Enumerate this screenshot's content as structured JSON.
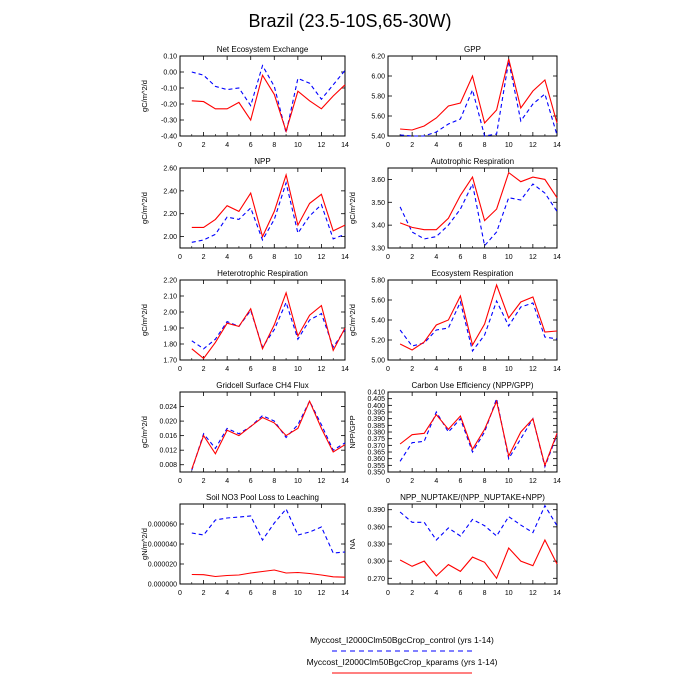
{
  "title": "Brazil (23.5-10S,65-30W)",
  "legend": [
    {
      "label": "Myccost_I2000Clm50BgcCrop_control (yrs 1-14)",
      "color": "#0000ff",
      "dash": true
    },
    {
      "label": "Myccost_I2000Clm50BgcCrop_kparams (yrs 1-14)",
      "color": "#ff0000",
      "dash": false
    }
  ],
  "chart_data": [
    {
      "type": "line",
      "title": "Net Ecosystem Exchange",
      "ylabel": "gC/m^2/d",
      "xlim": [
        0,
        14
      ],
      "xticks": [
        0,
        2,
        4,
        6,
        8,
        10,
        12,
        14
      ],
      "ylim": [
        -0.4,
        0.1
      ],
      "yticks": [
        -0.4,
        -0.3,
        -0.2,
        -0.1,
        0.0,
        0.1
      ],
      "ytick_labels": [
        "-0.40",
        "-0.30",
        "-0.20",
        "-0.10",
        "0.00",
        "0.10"
      ],
      "x": [
        1,
        2,
        3,
        4,
        5,
        6,
        7,
        8,
        9,
        10,
        11,
        12,
        13,
        14
      ],
      "series": [
        {
          "color": "#0000ff",
          "dash": true,
          "values": [
            0.0,
            -0.02,
            -0.09,
            -0.11,
            -0.1,
            -0.21,
            0.04,
            -0.09,
            -0.38,
            -0.04,
            -0.07,
            -0.17,
            -0.08,
            0.01
          ]
        },
        {
          "color": "#ff0000",
          "dash": false,
          "values": [
            -0.18,
            -0.185,
            -0.23,
            -0.23,
            -0.19,
            -0.3,
            -0.02,
            -0.14,
            -0.37,
            -0.12,
            -0.18,
            -0.23,
            -0.15,
            -0.08
          ]
        }
      ]
    },
    {
      "type": "line",
      "title": "GPP",
      "ylabel": "",
      "xlim": [
        0,
        14
      ],
      "xticks": [
        0,
        2,
        4,
        6,
        8,
        10,
        12,
        14
      ],
      "ylim": [
        5.4,
        6.2
      ],
      "yticks": [
        5.4,
        5.6,
        5.8,
        6.0,
        6.2
      ],
      "ytick_labels": [
        "5.40",
        "5.60",
        "5.80",
        "6.00",
        "6.20"
      ],
      "x": [
        1,
        2,
        3,
        4,
        5,
        6,
        7,
        8,
        9,
        10,
        11,
        12,
        13,
        14
      ],
      "series": [
        {
          "color": "#0000ff",
          "dash": true,
          "values": [
            5.41,
            5.35,
            5.37,
            5.44,
            5.52,
            5.57,
            5.86,
            5.28,
            5.42,
            6.15,
            5.55,
            5.72,
            5.82,
            5.41
          ]
        },
        {
          "color": "#ff0000",
          "dash": false,
          "values": [
            5.47,
            5.46,
            5.5,
            5.58,
            5.7,
            5.73,
            6.0,
            5.53,
            5.66,
            6.17,
            5.68,
            5.85,
            5.96,
            5.53
          ]
        }
      ]
    },
    {
      "type": "line",
      "title": "NPP",
      "ylabel": "gC/m^2/d",
      "xlim": [
        0,
        14
      ],
      "xticks": [
        0,
        2,
        4,
        6,
        8,
        10,
        12,
        14
      ],
      "ylim": [
        1.9,
        2.6
      ],
      "yticks": [
        2.0,
        2.2,
        2.4,
        2.6
      ],
      "ytick_labels": [
        "2.00",
        "2.20",
        "2.40",
        "2.60"
      ],
      "x": [
        1,
        2,
        3,
        4,
        5,
        6,
        7,
        8,
        9,
        10,
        11,
        12,
        13,
        14
      ],
      "series": [
        {
          "color": "#0000ff",
          "dash": true,
          "values": [
            1.95,
            1.97,
            2.02,
            2.17,
            2.15,
            2.25,
            1.97,
            2.15,
            2.47,
            2.03,
            2.18,
            2.28,
            1.98,
            2.02
          ]
        },
        {
          "color": "#ff0000",
          "dash": false,
          "values": [
            2.08,
            2.08,
            2.15,
            2.27,
            2.22,
            2.38,
            2.0,
            2.22,
            2.54,
            2.1,
            2.29,
            2.37,
            2.05,
            2.1
          ]
        }
      ]
    },
    {
      "type": "line",
      "title": "Autotrophic Respiration",
      "ylabel": "gC/m^2/d",
      "xlim": [
        0,
        14
      ],
      "xticks": [
        0,
        2,
        4,
        6,
        8,
        10,
        12,
        14
      ],
      "ylim": [
        3.3,
        3.65
      ],
      "yticks": [
        3.3,
        3.4,
        3.5,
        3.6
      ],
      "ytick_labels": [
        "3.30",
        "3.40",
        "3.50",
        "3.60"
      ],
      "x": [
        1,
        2,
        3,
        4,
        5,
        6,
        7,
        8,
        9,
        10,
        11,
        12,
        13,
        14
      ],
      "series": [
        {
          "color": "#0000ff",
          "dash": true,
          "values": [
            3.48,
            3.37,
            3.34,
            3.35,
            3.4,
            3.47,
            3.58,
            3.31,
            3.37,
            3.52,
            3.51,
            3.58,
            3.54,
            3.46
          ]
        },
        {
          "color": "#ff0000",
          "dash": false,
          "values": [
            3.41,
            3.39,
            3.38,
            3.38,
            3.43,
            3.53,
            3.61,
            3.42,
            3.47,
            3.63,
            3.59,
            3.61,
            3.6,
            3.52
          ]
        }
      ]
    },
    {
      "type": "line",
      "title": "Heterotrophic Respiration",
      "ylabel": "gC/m^2/d",
      "xlim": [
        0,
        14
      ],
      "xticks": [
        0,
        2,
        4,
        6,
        8,
        10,
        12,
        14
      ],
      "ylim": [
        1.7,
        2.2
      ],
      "yticks": [
        1.7,
        1.8,
        1.9,
        2.0,
        2.1,
        2.2
      ],
      "ytick_labels": [
        "1.70",
        "1.80",
        "1.90",
        "2.00",
        "2.10",
        "2.20"
      ],
      "x": [
        1,
        2,
        3,
        4,
        5,
        6,
        7,
        8,
        9,
        10,
        11,
        12,
        13,
        14
      ],
      "series": [
        {
          "color": "#0000ff",
          "dash": true,
          "values": [
            1.82,
            1.77,
            1.83,
            1.94,
            1.91,
            2.01,
            1.78,
            1.89,
            2.06,
            1.83,
            1.95,
            1.99,
            1.78,
            1.89
          ]
        },
        {
          "color": "#ff0000",
          "dash": false,
          "values": [
            1.77,
            1.71,
            1.81,
            1.93,
            1.91,
            2.02,
            1.77,
            1.92,
            2.12,
            1.85,
            1.98,
            2.04,
            1.76,
            1.9
          ]
        }
      ]
    },
    {
      "type": "line",
      "title": "Ecosystem Respiration",
      "ylabel": "gC/m^2/d",
      "xlim": [
        0,
        14
      ],
      "xticks": [
        0,
        2,
        4,
        6,
        8,
        10,
        12,
        14
      ],
      "ylim": [
        5.0,
        5.8
      ],
      "yticks": [
        5.0,
        5.2,
        5.4,
        5.6,
        5.8
      ],
      "ytick_labels": [
        "5.00",
        "5.20",
        "5.40",
        "5.60",
        "5.80"
      ],
      "x": [
        1,
        2,
        3,
        4,
        5,
        6,
        7,
        8,
        9,
        10,
        11,
        12,
        13,
        14
      ],
      "series": [
        {
          "color": "#0000ff",
          "dash": true,
          "values": [
            5.3,
            5.14,
            5.17,
            5.3,
            5.32,
            5.58,
            5.09,
            5.25,
            5.59,
            5.34,
            5.53,
            5.57,
            5.23,
            5.21
          ]
        },
        {
          "color": "#ff0000",
          "dash": false,
          "values": [
            5.16,
            5.1,
            5.18,
            5.35,
            5.4,
            5.64,
            5.15,
            5.36,
            5.75,
            5.42,
            5.58,
            5.63,
            5.28,
            5.29
          ]
        }
      ]
    },
    {
      "type": "line",
      "title": "Gridcell Surface CH4 Flux",
      "ylabel": "gC/m^2/d",
      "xlim": [
        0,
        14
      ],
      "xticks": [
        0,
        2,
        4,
        6,
        8,
        10,
        12,
        14
      ],
      "ylim": [
        0.006,
        0.028
      ],
      "yticks": [
        0.008,
        0.012,
        0.016,
        0.02,
        0.024
      ],
      "ytick_labels": [
        "0.008",
        "0.012",
        "0.016",
        "0.020",
        "0.024"
      ],
      "x": [
        1,
        2,
        3,
        4,
        5,
        6,
        7,
        8,
        9,
        10,
        11,
        12,
        13,
        14
      ],
      "series": [
        {
          "color": "#0000ff",
          "dash": true,
          "values": [
            0.0065,
            0.0165,
            0.0125,
            0.018,
            0.0165,
            0.0185,
            0.0215,
            0.02,
            0.0155,
            0.019,
            0.0255,
            0.019,
            0.012,
            0.014
          ]
        },
        {
          "color": "#ff0000",
          "dash": false,
          "values": [
            0.0068,
            0.016,
            0.011,
            0.0175,
            0.016,
            0.0185,
            0.021,
            0.0195,
            0.016,
            0.018,
            0.0255,
            0.018,
            0.0115,
            0.0135
          ]
        }
      ]
    },
    {
      "type": "line",
      "title": "Carbon Use Efficiency (NPP/GPP)",
      "ylabel": "NPP/GPP",
      "xlim": [
        0,
        14
      ],
      "xticks": [
        0,
        2,
        4,
        6,
        8,
        10,
        12,
        14
      ],
      "ylim": [
        0.35,
        0.41
      ],
      "yticks": [
        0.35,
        0.355,
        0.36,
        0.365,
        0.37,
        0.375,
        0.38,
        0.385,
        0.39,
        0.395,
        0.4,
        0.405,
        0.41
      ],
      "ytick_labels": [
        "0.350",
        "0.355",
        "0.360",
        "0.365",
        "0.370",
        "0.375",
        "0.380",
        "0.385",
        "0.390",
        "0.395",
        "0.400",
        "0.405",
        "0.410"
      ],
      "x": [
        1,
        2,
        3,
        4,
        5,
        6,
        7,
        8,
        9,
        10,
        11,
        12,
        13,
        14
      ],
      "series": [
        {
          "color": "#0000ff",
          "dash": true,
          "values": [
            0.358,
            0.372,
            0.373,
            0.395,
            0.38,
            0.39,
            0.365,
            0.38,
            0.405,
            0.36,
            0.375,
            0.39,
            0.354,
            0.378
          ]
        },
        {
          "color": "#ff0000",
          "dash": false,
          "values": [
            0.371,
            0.378,
            0.379,
            0.393,
            0.382,
            0.392,
            0.367,
            0.382,
            0.403,
            0.362,
            0.38,
            0.39,
            0.355,
            0.379
          ]
        }
      ]
    },
    {
      "type": "line",
      "title": "Soil NO3 Pool Loss to Leaching",
      "ylabel": "gN/m^2/d",
      "xlim": [
        0,
        14
      ],
      "xticks": [
        0,
        2,
        4,
        6,
        8,
        10,
        12,
        14
      ],
      "ylim": [
        0.0,
        8e-05
      ],
      "yticks": [
        0.0,
        2e-05,
        4e-05,
        6e-05
      ],
      "ytick_labels": [
        "0.000000",
        "0.000020",
        "0.000040",
        "0.000060"
      ],
      "x": [
        1,
        2,
        3,
        4,
        5,
        6,
        7,
        8,
        9,
        10,
        11,
        12,
        13,
        14
      ],
      "series": [
        {
          "color": "#0000ff",
          "dash": true,
          "values": [
            5.1e-05,
            4.9e-05,
            6.4e-05,
            6.6e-05,
            6.7e-05,
            6.8e-05,
            4.4e-05,
            6.1e-05,
            7.5e-05,
            4.9e-05,
            5.2e-05,
            5.7e-05,
            3.1e-05,
            3.2e-05
          ]
        },
        {
          "color": "#ff0000",
          "dash": false,
          "values": [
            9.5e-06,
            9.3e-06,
            7.5e-06,
            8.5e-06,
            9e-06,
            1.1e-05,
            1.25e-05,
            1.4e-05,
            1.1e-05,
            1.15e-05,
            1.05e-05,
            9e-06,
            7.2e-06,
            6.8e-06
          ]
        }
      ]
    },
    {
      "type": "line",
      "title": "NPP_NUPTAKE/(NPP_NUPTAKE+NPP)",
      "ylabel": "NA",
      "xlim": [
        0,
        14
      ],
      "xticks": [
        0,
        2,
        4,
        6,
        8,
        10,
        12,
        14
      ],
      "ylim": [
        0.26,
        0.4
      ],
      "yticks": [
        0.27,
        0.3,
        0.33,
        0.36,
        0.39
      ],
      "ytick_labels": [
        "0.270",
        "0.300",
        "0.330",
        "0.360",
        "0.390"
      ],
      "x": [
        1,
        2,
        3,
        4,
        5,
        6,
        7,
        8,
        9,
        10,
        11,
        12,
        13,
        14
      ],
      "series": [
        {
          "color": "#0000ff",
          "dash": true,
          "values": [
            0.386,
            0.368,
            0.368,
            0.337,
            0.358,
            0.344,
            0.373,
            0.362,
            0.344,
            0.378,
            0.363,
            0.35,
            0.397,
            0.362
          ]
        },
        {
          "color": "#ff0000",
          "dash": false,
          "values": [
            0.302,
            0.291,
            0.3,
            0.274,
            0.294,
            0.282,
            0.307,
            0.298,
            0.27,
            0.323,
            0.3,
            0.292,
            0.337,
            0.295
          ]
        }
      ]
    }
  ]
}
